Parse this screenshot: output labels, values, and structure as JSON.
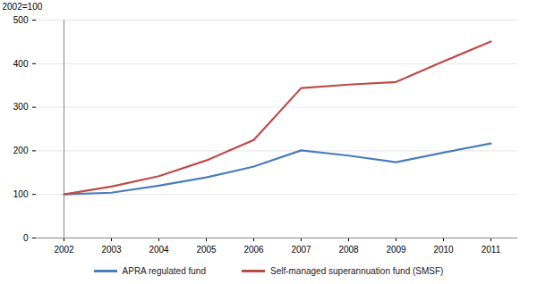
{
  "chart_data": {
    "type": "line",
    "y_label": "2002=100",
    "categories": [
      "2002",
      "2003",
      "2004",
      "2005",
      "2006",
      "2007",
      "2008",
      "2009",
      "2010",
      "2011"
    ],
    "series": [
      {
        "name": "APRA regulated fund",
        "color": "#4a7ebb",
        "values": [
          100,
          104,
          120,
          139,
          164,
          201,
          189,
          174,
          196,
          217
        ]
      },
      {
        "name": "Self-managed superannuation fund (SMSF)",
        "color": "#be4b48",
        "values": [
          100,
          118,
          142,
          178,
          225,
          344,
          352,
          358,
          405,
          451
        ]
      }
    ],
    "ylim": [
      0,
      500
    ],
    "yticks": [
      0,
      100,
      200,
      300,
      400,
      500
    ],
    "grid": true,
    "legend": "bottom"
  }
}
